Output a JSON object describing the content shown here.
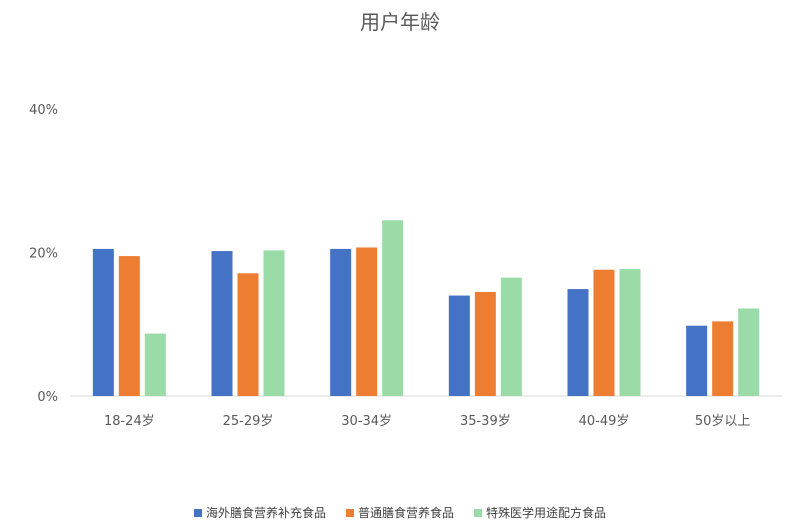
{
  "chart_data": {
    "type": "bar",
    "title": "用户年龄",
    "categories": [
      "18-24岁",
      "25-29岁",
      "30-34岁",
      "35-39岁",
      "40-49岁",
      "50岁以上"
    ],
    "series": [
      {
        "name": "海外膳食营养补充食品",
        "color": "#4472C4",
        "values": [
          20.5,
          20.2,
          20.5,
          14.0,
          14.9,
          9.8
        ]
      },
      {
        "name": "普通膳食营养食品",
        "color": "#ED7D31",
        "values": [
          19.5,
          17.1,
          20.7,
          14.5,
          17.6,
          10.4
        ]
      },
      {
        "name": "特殊医学用途配方食品",
        "color": "#9ADBA8",
        "values": [
          8.7,
          20.3,
          24.5,
          16.5,
          17.7,
          12.2
        ]
      }
    ],
    "yticks": [
      "0%",
      "20%",
      "40%"
    ],
    "ylim": [
      0,
      40
    ],
    "grid": false,
    "legend_position": "bottom"
  }
}
